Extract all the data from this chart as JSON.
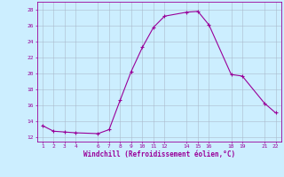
{
  "x": [
    1,
    2,
    3,
    4,
    6,
    7,
    8,
    9,
    10,
    11,
    12,
    14,
    15,
    16,
    18,
    19,
    21,
    22
  ],
  "y": [
    13.5,
    12.8,
    12.7,
    12.6,
    12.5,
    13.0,
    16.7,
    20.3,
    23.3,
    25.8,
    27.2,
    27.7,
    27.8,
    26.1,
    19.9,
    19.7,
    16.3,
    15.1
  ],
  "line_color": "#990099",
  "marker": "+",
  "marker_size": 3.5,
  "bg_color": "#cceeff",
  "grid_color": "#aabbcc",
  "xlabel": "Windchill (Refroidissement éolien,°C)",
  "xlabel_color": "#990099",
  "tick_color": "#990099",
  "ylim": [
    11.5,
    29
  ],
  "xlim": [
    0.5,
    22.5
  ],
  "yticks": [
    12,
    14,
    16,
    18,
    20,
    22,
    24,
    26,
    28
  ],
  "xticks": [
    1,
    2,
    3,
    4,
    6,
    7,
    8,
    9,
    10,
    11,
    12,
    14,
    15,
    16,
    18,
    19,
    21,
    22
  ]
}
